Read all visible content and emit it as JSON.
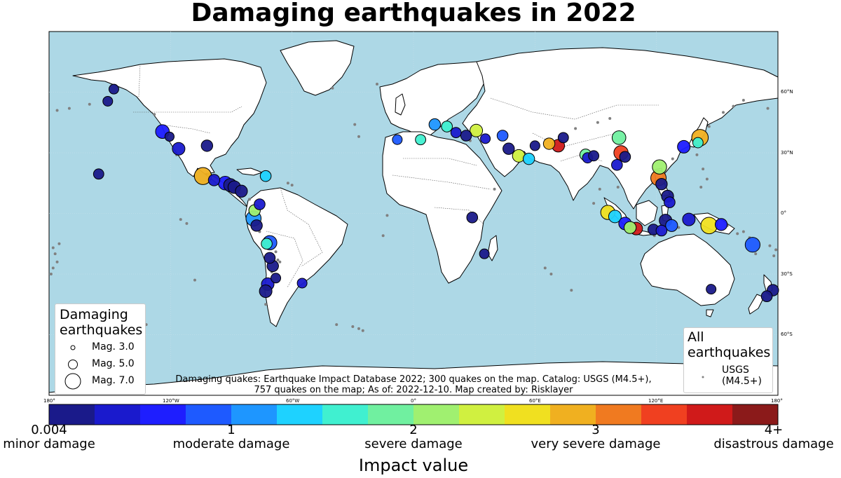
{
  "title": "Damaging earthquakes in 2022",
  "colors": {
    "ocean": "#add8e6",
    "land": "#ffffff",
    "all_quakes": "#808080",
    "colorbar": [
      "#1a1a8a",
      "#1a1acd",
      "#1e1eff",
      "#1e5aff",
      "#1e96ff",
      "#1ed2ff",
      "#40f0d0",
      "#70f0a0",
      "#a0f070",
      "#d0f040",
      "#f0e020",
      "#f0b020",
      "#f07a20",
      "#f04020",
      "#d01a1a",
      "#8b1a1a"
    ]
  },
  "lon_ticks": [
    "180°",
    "120°W",
    "60°W",
    "0°",
    "60°E",
    "120°E",
    "180°"
  ],
  "lat_ticks": [
    "60°N",
    "30°N",
    "0°",
    "30°S",
    "60°S"
  ],
  "legend_damaging": {
    "title_line1": "Damaging",
    "title_line2": "earthquakes",
    "items": [
      {
        "label": "Mag. 3.0",
        "magnitude": 3.0
      },
      {
        "label": "Mag. 5.0",
        "magnitude": 5.0
      },
      {
        "label": "Mag. 7.0",
        "magnitude": 7.0
      }
    ]
  },
  "legend_all": {
    "title_line1": "All",
    "title_line2": "earthquakes",
    "item_line1": "USGS",
    "item_line2": "(M4.5+)"
  },
  "credits_line1": "Damaging quakes: Earthquake Impact Database 2022; 300 quakes on the map. Catalog: USGS (M4.5+),",
  "credits_line2": "757 quakes on the map; As of: 2022-12-10. Map created by: Risklayer",
  "colorbar": {
    "min": 0,
    "max": 4,
    "title": "Impact value",
    "ticks": [
      {
        "value": 0,
        "top": "0.004",
        "bottom": "minor damage"
      },
      {
        "value": 1,
        "top": "1",
        "bottom": "moderate damage"
      },
      {
        "value": 2,
        "top": "2",
        "bottom": "severe damage"
      },
      {
        "value": 3,
        "top": "3",
        "bottom": "very severe damage"
      },
      {
        "value": 4,
        "top": "4+",
        "bottom": "disastrous damage"
      }
    ]
  },
  "map_data": {
    "damaging_quakes": [
      {
        "lon": -104.0,
        "lat": 18.5,
        "mag": 7.6,
        "impact": 2.8
      },
      {
        "lon": -93.0,
        "lat": 15.0,
        "mag": 6.4,
        "impact": 0.6
      },
      {
        "lon": -90.5,
        "lat": 14.0,
        "mag": 6.2,
        "impact": 0.2
      },
      {
        "lon": -98.5,
        "lat": 16.5,
        "mag": 5.6,
        "impact": 0.3
      },
      {
        "lon": -88.5,
        "lat": 13.0,
        "mag": 6.0,
        "impact": 0.1
      },
      {
        "lon": -85.0,
        "lat": 11.0,
        "mag": 5.8,
        "impact": 0.2
      },
      {
        "lon": -73.0,
        "lat": 18.5,
        "mag": 5.4,
        "impact": 1.4
      },
      {
        "lon": -116.0,
        "lat": 32.0,
        "mag": 6.0,
        "impact": 0.3
      },
      {
        "lon": -120.5,
        "lat": 38.0,
        "mag": 4.8,
        "impact": 0.1
      },
      {
        "lon": -124.0,
        "lat": 40.5,
        "mag": 6.4,
        "impact": 0.6
      },
      {
        "lon": -102.0,
        "lat": 33.5,
        "mag": 5.6,
        "impact": 0.1
      },
      {
        "lon": -155.5,
        "lat": 19.5,
        "mag": 5.2,
        "impact": 0.2
      },
      {
        "lon": -78.5,
        "lat": 1.5,
        "mag": 5.6,
        "impact": 2.2
      },
      {
        "lon": -79.0,
        "lat": -2.5,
        "mag": 6.9,
        "impact": 1.0
      },
      {
        "lon": -77.5,
        "lat": -6.0,
        "mag": 5.6,
        "impact": 0.2
      },
      {
        "lon": -76.0,
        "lat": 4.5,
        "mag": 5.4,
        "impact": 0.3
      },
      {
        "lon": -71.0,
        "lat": -14.5,
        "mag": 6.6,
        "impact": 0.8
      },
      {
        "lon": -72.5,
        "lat": -15.0,
        "mag": 5.4,
        "impact": 1.6
      },
      {
        "lon": -71.0,
        "lat": -22.0,
        "mag": 5.4,
        "impact": 0.1
      },
      {
        "lon": -69.5,
        "lat": -26.0,
        "mag": 5.6,
        "impact": 0.1
      },
      {
        "lon": -72.0,
        "lat": -35.0,
        "mag": 6.0,
        "impact": 0.4
      },
      {
        "lon": -73.0,
        "lat": -38.5,
        "mag": 6.0,
        "impact": 0.2
      },
      {
        "lon": -68.0,
        "lat": -32.0,
        "mag": 5.0,
        "impact": 0.1
      },
      {
        "lon": 3.5,
        "lat": 36.5,
        "mag": 5.2,
        "impact": 1.5
      },
      {
        "lon": 10.5,
        "lat": 44.0,
        "mag": 5.6,
        "impact": 1.2
      },
      {
        "lon": 16.5,
        "lat": 43.0,
        "mag": 5.4,
        "impact": 1.7
      },
      {
        "lon": 21.0,
        "lat": 40.0,
        "mag": 5.2,
        "impact": 0.3
      },
      {
        "lon": 26.0,
        "lat": 38.5,
        "mag": 5.4,
        "impact": 0.2
      },
      {
        "lon": 31.0,
        "lat": 41.0,
        "mag": 6.0,
        "impact": 2.3
      },
      {
        "lon": 35.5,
        "lat": 37.0,
        "mag": 5.0,
        "impact": 0.3
      },
      {
        "lon": 44.0,
        "lat": 38.5,
        "mag": 5.4,
        "impact": 0.8
      },
      {
        "lon": 47.0,
        "lat": 32.0,
        "mag": 5.6,
        "impact": 0.2
      },
      {
        "lon": 52.0,
        "lat": 28.5,
        "mag": 6.0,
        "impact": 2.3
      },
      {
        "lon": 57.0,
        "lat": 27.0,
        "mag": 5.6,
        "impact": 1.4
      },
      {
        "lon": 60.0,
        "lat": 33.5,
        "mag": 5.0,
        "impact": 0.1
      },
      {
        "lon": 67.0,
        "lat": 34.5,
        "mag": 5.6,
        "impact": 2.8
      },
      {
        "lon": 71.5,
        "lat": 33.5,
        "mag": 6.0,
        "impact": 3.7
      },
      {
        "lon": 74.0,
        "lat": 37.5,
        "mag": 5.2,
        "impact": 0.2
      },
      {
        "lon": 85.0,
        "lat": 29.0,
        "mag": 5.6,
        "impact": 1.8
      },
      {
        "lon": 86.0,
        "lat": 27.5,
        "mag": 5.2,
        "impact": 0.4
      },
      {
        "lon": 89.0,
        "lat": 28.5,
        "mag": 5.2,
        "impact": 0.1
      },
      {
        "lon": 102.5,
        "lat": 30.0,
        "mag": 6.6,
        "impact": 3.4
      },
      {
        "lon": 101.5,
        "lat": 37.5,
        "mag": 6.4,
        "impact": 1.9
      },
      {
        "lon": 104.5,
        "lat": 28.0,
        "mag": 5.4,
        "impact": 0.2
      },
      {
        "lon": 100.5,
        "lat": 24.0,
        "mag": 5.4,
        "impact": 0.4
      },
      {
        "lon": 121.5,
        "lat": 23.0,
        "mag": 6.6,
        "impact": 2.0
      },
      {
        "lon": 121.0,
        "lat": 17.5,
        "mag": 7.0,
        "impact": 3.2
      },
      {
        "lon": 122.5,
        "lat": 14.5,
        "mag": 5.6,
        "impact": 0.2
      },
      {
        "lon": 125.5,
        "lat": 8.5,
        "mag": 5.8,
        "impact": 0.2
      },
      {
        "lon": 126.5,
        "lat": 5.5,
        "mag": 5.4,
        "impact": 0.3
      },
      {
        "lon": 141.5,
        "lat": 37.5,
        "mag": 7.4,
        "impact": 2.8
      },
      {
        "lon": 133.5,
        "lat": 33.0,
        "mag": 6.0,
        "impact": 0.6
      },
      {
        "lon": 140.5,
        "lat": 35.0,
        "mag": 5.2,
        "impact": 1.7
      },
      {
        "lon": 96.0,
        "lat": 0.5,
        "mag": 6.6,
        "impact": 2.5
      },
      {
        "lon": 99.5,
        "lat": -1.5,
        "mag": 6.0,
        "impact": 1.3
      },
      {
        "lon": 104.5,
        "lat": -5.0,
        "mag": 6.0,
        "impact": 0.7
      },
      {
        "lon": 107.0,
        "lat": -7.0,
        "mag": 5.8,
        "impact": 2.0
      },
      {
        "lon": 110.0,
        "lat": -7.5,
        "mag": 6.0,
        "impact": 3.7
      },
      {
        "lon": 118.5,
        "lat": -8.0,
        "mag": 5.4,
        "impact": 0.2
      },
      {
        "lon": 122.5,
        "lat": -8.5,
        "mag": 5.4,
        "impact": 0.3
      },
      {
        "lon": 124.5,
        "lat": -3.5,
        "mag": 6.0,
        "impact": 0.1
      },
      {
        "lon": 127.5,
        "lat": -6.0,
        "mag": 5.8,
        "impact": 0.8
      },
      {
        "lon": 136.0,
        "lat": -3.0,
        "mag": 6.0,
        "impact": 0.3
      },
      {
        "lon": 146.0,
        "lat": -6.0,
        "mag": 7.4,
        "impact": 2.7
      },
      {
        "lon": 152.0,
        "lat": -5.5,
        "mag": 5.8,
        "impact": 0.6
      },
      {
        "lon": 167.5,
        "lat": -15.5,
        "mag": 6.8,
        "impact": 0.8
      },
      {
        "lon": 177.5,
        "lat": -38.0,
        "mag": 5.6,
        "impact": 0.1
      },
      {
        "lon": 174.5,
        "lat": -41.0,
        "mag": 5.4,
        "impact": 0.2
      },
      {
        "lon": 147.0,
        "lat": -37.5,
        "mag": 5.0,
        "impact": 0.1
      },
      {
        "lon": -8.0,
        "lat": 36.5,
        "mag": 5.0,
        "impact": 0.8
      },
      {
        "lon": 29.0,
        "lat": -2.0,
        "mag": 5.4,
        "impact": 0.1
      },
      {
        "lon": 35.0,
        "lat": -20.0,
        "mag": 5.0,
        "impact": 0.1
      },
      {
        "lon": -148.0,
        "lat": 61.5,
        "mag": 5.0,
        "impact": 0.1
      },
      {
        "lon": -55.0,
        "lat": -34.5,
        "mag": 5.0,
        "impact": 0.3
      },
      {
        "lon": -151.0,
        "lat": 55.5,
        "mag": 5.0,
        "impact": 0.2
      }
    ],
    "usgs_quakes": [
      {
        "lon": -178,
        "lat": -17
      },
      {
        "lon": -177,
        "lat": -20
      },
      {
        "lon": -176,
        "lat": -24
      },
      {
        "lon": -178,
        "lat": -27
      },
      {
        "lon": -175,
        "lat": -15
      },
      {
        "lon": -179,
        "lat": -30
      },
      {
        "lon": 179,
        "lat": -18
      },
      {
        "lon": 178,
        "lat": -21
      },
      {
        "lon": 176,
        "lat": -16
      },
      {
        "lon": 169,
        "lat": -20
      },
      {
        "lon": 166,
        "lat": -12
      },
      {
        "lon": 163,
        "lat": -9
      },
      {
        "lon": 155,
        "lat": -6
      },
      {
        "lon": 160,
        "lat": -10
      },
      {
        "lon": 150,
        "lat": -4
      },
      {
        "lon": 143,
        "lat": 22
      },
      {
        "lon": 145,
        "lat": 17
      },
      {
        "lon": 142,
        "lat": 13
      },
      {
        "lon": 153,
        "lat": 50
      },
      {
        "lon": 158,
        "lat": 53
      },
      {
        "lon": 163,
        "lat": 56
      },
      {
        "lon": 146,
        "lat": 43
      },
      {
        "lon": 140,
        "lat": 29
      },
      {
        "lon": 128,
        "lat": 27
      },
      {
        "lon": -170,
        "lat": 52
      },
      {
        "lon": -176,
        "lat": 51
      },
      {
        "lon": -160,
        "lat": 54
      },
      {
        "lon": 175,
        "lat": 52
      },
      {
        "lon": -128,
        "lat": 49
      },
      {
        "lon": -117,
        "lat": 29
      },
      {
        "lon": -95,
        "lat": 13
      },
      {
        "lon": -86,
        "lat": 10
      },
      {
        "lon": -68,
        "lat": -19
      },
      {
        "lon": -67,
        "lat": -23
      },
      {
        "lon": -70,
        "lat": -29
      },
      {
        "lon": -66,
        "lat": -24
      },
      {
        "lon": -73,
        "lat": -45
      },
      {
        "lon": -76,
        "lat": -9
      },
      {
        "lon": -81,
        "lat": 7
      },
      {
        "lon": -62,
        "lat": 15
      },
      {
        "lon": -60,
        "lat": 14
      },
      {
        "lon": -27,
        "lat": 38
      },
      {
        "lon": -29,
        "lat": 44
      },
      {
        "lon": -40,
        "lat": 62
      },
      {
        "lon": -18,
        "lat": 64
      },
      {
        "lon": -13,
        "lat": -1
      },
      {
        "lon": -15,
        "lat": -11
      },
      {
        "lon": -25,
        "lat": -58
      },
      {
        "lon": -27,
        "lat": -57
      },
      {
        "lon": -30,
        "lat": -56
      },
      {
        "lon": -38,
        "lat": -55
      },
      {
        "lon": 28,
        "lat": 36
      },
      {
        "lon": 68,
        "lat": -30
      },
      {
        "lon": 65,
        "lat": -27
      },
      {
        "lon": 78,
        "lat": -38
      },
      {
        "lon": 89,
        "lat": 5
      },
      {
        "lon": 92,
        "lat": 12
      },
      {
        "lon": 95,
        "lat": 3
      },
      {
        "lon": 97,
        "lat": 47
      },
      {
        "lon": 91,
        "lat": 45
      },
      {
        "lon": 80,
        "lat": 42
      },
      {
        "lon": 119,
        "lat": -11
      },
      {
        "lon": 131,
        "lat": -7
      },
      {
        "lon": 101,
        "lat": 13
      },
      {
        "lon": -115,
        "lat": -3
      },
      {
        "lon": -108,
        "lat": -33
      },
      {
        "lon": -132,
        "lat": -55
      },
      {
        "lon": -112,
        "lat": -5
      },
      {
        "lon": 40,
        "lat": 12
      }
    ]
  }
}
